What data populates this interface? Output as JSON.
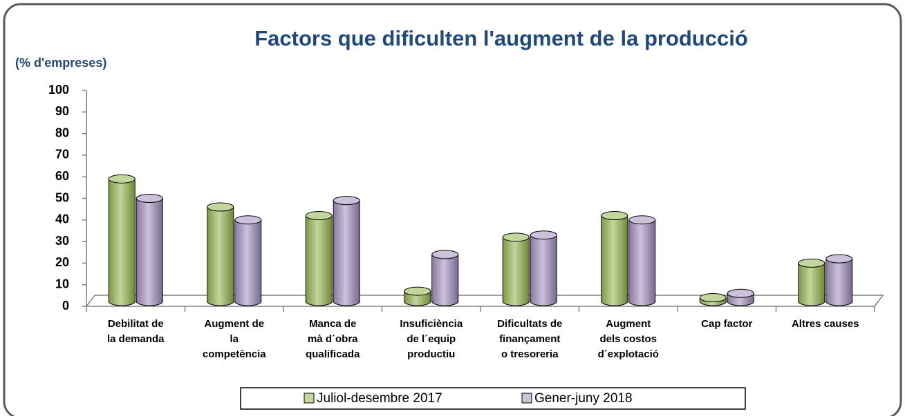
{
  "chart_data": {
    "type": "bar3d",
    "title": "Factors que dificulten l'augment de la producció",
    "y_label": "(% d'empreses)",
    "categories": [
      [
        "Debilitat de",
        "la demanda"
      ],
      [
        "Augment de",
        "la",
        "competència"
      ],
      [
        "Manca de",
        "mà d´obra",
        "qualificada"
      ],
      [
        "Insuficiència",
        "de l´equip",
        "productiu"
      ],
      [
        "Dificultats de",
        "finançament",
        "o tresoreria"
      ],
      [
        "Augment",
        "dels costos",
        "d´explotació"
      ],
      [
        "Cap factor"
      ],
      [
        "Altres causes"
      ]
    ],
    "series": [
      {
        "name": "Juliol-desembre 2017",
        "color": "#c3d69b",
        "values": [
          59,
          46,
          42,
          7,
          32,
          42,
          4,
          20
        ]
      },
      {
        "name": "Gener-juny 2018",
        "color": "#ccc1da",
        "values": [
          50,
          40,
          49,
          24,
          33,
          40,
          6,
          22
        ]
      }
    ],
    "ylim": [
      0,
      100
    ],
    "yticks": [
      0,
      10,
      20,
      30,
      40,
      50,
      60,
      70,
      80,
      90,
      100
    ],
    "legend": "bottom"
  }
}
